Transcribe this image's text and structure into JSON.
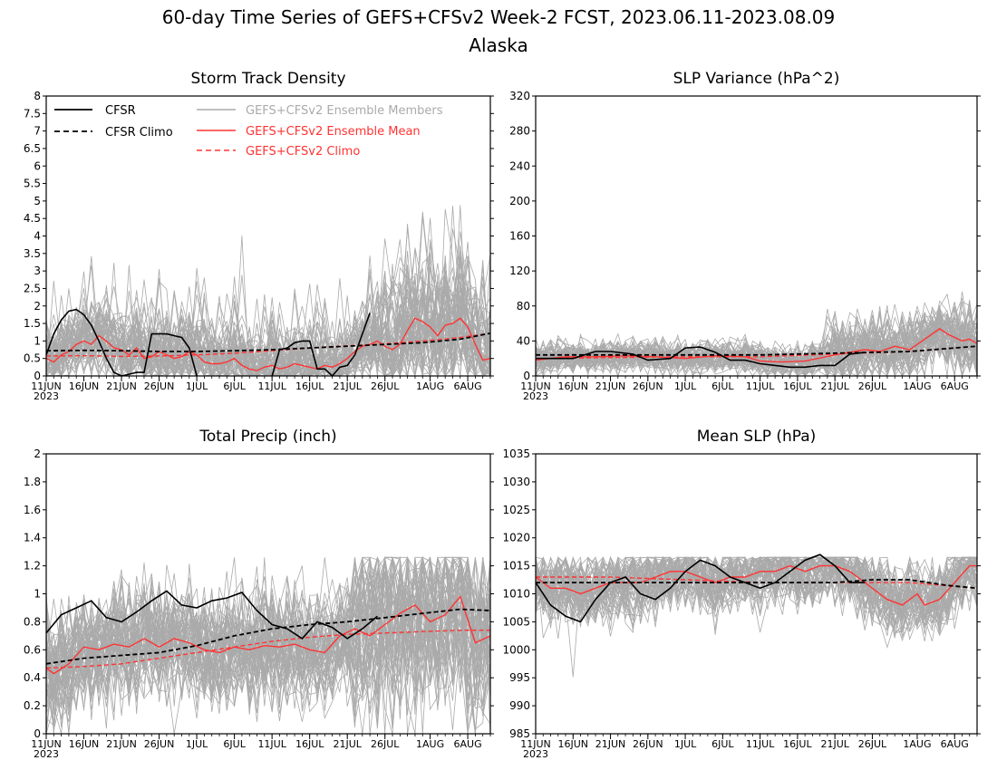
{
  "figure": {
    "title_line1": "60-day Time Series of GEFS+CFSv2 Week-2 FCST, 2023.06.11-2023.08.09",
    "title_line2": "Alaska"
  },
  "colors": {
    "cfsr": "#000000",
    "members": "#aaaaaa",
    "ens_mean": "#ff3333",
    "gefs_climo": "#ff3333"
  },
  "legend": {
    "cfsr": "CFSR",
    "cfsr_climo": "CFSR Climo",
    "members": "GEFS+CFSv2 Ensemble Members",
    "ens_mean": "GEFS+CFSv2 Ensemble Mean",
    "gefs_climo": "GEFS+CFSv2 Climo",
    "placement": "top (inside Storm Track Density panel)"
  },
  "x_axis": {
    "tick_labels": [
      "11JUN",
      "16JUN",
      "21JUN",
      "26JUN",
      "1JUL",
      "6JUL",
      "11JUL",
      "16JUL",
      "21JUL",
      "26JUL",
      "1AUG",
      "6AUG"
    ],
    "tick_days": [
      0,
      5,
      10,
      15,
      20,
      25,
      30,
      35,
      40,
      45,
      51,
      56
    ],
    "year_label": "2023",
    "day_range": [
      0,
      59
    ]
  },
  "chart_data": [
    {
      "type": "line",
      "title": "Storm Track Density",
      "ylim": [
        0,
        8
      ],
      "yticks": [
        "0",
        "0.5",
        "1",
        "1.5",
        "2",
        "2.5",
        "3",
        "3.5",
        "4",
        "4.5",
        "5",
        "5.5",
        "6",
        "6.5",
        "7",
        "7.5",
        "8"
      ],
      "series": [
        {
          "name": "CFSR",
          "x": [
            0,
            1,
            2,
            3,
            4,
            5,
            6,
            7,
            8,
            9,
            10,
            11,
            12,
            13,
            14,
            15,
            16,
            17,
            18,
            19,
            20,
            21,
            22,
            23,
            24,
            25,
            26,
            27,
            28,
            29,
            30,
            31,
            32,
            33,
            34,
            35,
            36,
            37,
            38,
            39,
            40,
            41,
            42,
            43,
            44
          ],
          "values": [
            0.6,
            1.2,
            1.6,
            1.85,
            1.9,
            1.75,
            1.45,
            1.0,
            0.5,
            0.1,
            0.0,
            0.05,
            0.1,
            0.1,
            1.2,
            1.2,
            1.2,
            1.15,
            1.1,
            0.8,
            0.0,
            null,
            null,
            null,
            null,
            null,
            null,
            null,
            null,
            null,
            0.0,
            0.75,
            0.8,
            0.95,
            1.0,
            1.0,
            0.2,
            0.2,
            0.0,
            0.25,
            0.3,
            0.6,
            1.2,
            1.8,
            null
          ]
        },
        {
          "name": "CFSR Climo",
          "x": [
            0,
            5,
            10,
            15,
            20,
            25,
            30,
            35,
            40,
            45,
            50,
            55,
            59
          ],
          "values": [
            0.72,
            0.73,
            0.72,
            0.7,
            0.7,
            0.72,
            0.75,
            0.8,
            0.85,
            0.9,
            0.95,
            1.05,
            1.22
          ]
        },
        {
          "name": "GEFS+CFSv2 Ensemble Mean",
          "x": [
            0,
            1,
            2,
            3,
            4,
            5,
            6,
            7,
            8,
            9,
            10,
            11,
            12,
            13,
            14,
            15,
            16,
            17,
            18,
            19,
            20,
            21,
            22,
            23,
            24,
            25,
            26,
            27,
            28,
            29,
            30,
            31,
            32,
            33,
            34,
            35,
            36,
            37,
            38,
            39,
            40,
            41,
            42,
            43,
            44,
            45,
            46,
            47,
            48,
            49,
            50,
            51,
            52,
            53,
            54,
            55,
            56,
            57,
            58,
            59
          ],
          "values": [
            0.5,
            0.4,
            0.6,
            0.7,
            0.9,
            1.0,
            0.9,
            1.15,
            1.0,
            0.8,
            0.75,
            0.6,
            0.8,
            0.5,
            0.55,
            0.7,
            0.6,
            0.5,
            0.55,
            0.7,
            0.6,
            0.4,
            0.35,
            0.35,
            0.4,
            0.5,
            0.3,
            0.2,
            0.15,
            0.25,
            0.3,
            0.2,
            0.25,
            0.35,
            0.3,
            0.25,
            0.2,
            0.3,
            0.25,
            0.35,
            0.5,
            0.7,
            0.85,
            0.9,
            1.0,
            0.85,
            0.75,
            0.9,
            1.3,
            1.65,
            1.55,
            1.4,
            1.15,
            1.45,
            1.5,
            1.65,
            1.4,
            0.9,
            0.45,
            0.5
          ]
        },
        {
          "name": "GEFS+CFSv2 Climo",
          "x": [
            0,
            5,
            10,
            15,
            20,
            25,
            30,
            35,
            40,
            45,
            50,
            55,
            59
          ],
          "values": [
            0.57,
            0.58,
            0.56,
            0.57,
            0.6,
            0.65,
            0.72,
            0.8,
            0.86,
            0.92,
            1.0,
            1.1,
            1.22
          ]
        }
      ]
    },
    {
      "type": "line",
      "title": "SLP Variance (hPa^2)",
      "ylim": [
        0,
        320
      ],
      "yticks": [
        "0",
        "40",
        "80",
        "120",
        "160",
        "200",
        "240",
        "280",
        "320"
      ],
      "series": [
        {
          "name": "CFSR",
          "x": [
            0,
            5,
            8,
            10,
            13,
            15,
            18,
            20,
            22,
            24,
            26,
            28,
            30,
            32,
            34,
            36,
            38,
            40,
            42,
            44
          ],
          "values": [
            20,
            20,
            28,
            28,
            25,
            18,
            20,
            32,
            33,
            27,
            18,
            18,
            14,
            12,
            10,
            10,
            12,
            12,
            25,
            27
          ]
        },
        {
          "name": "CFSR Climo",
          "x": [
            0,
            10,
            20,
            30,
            40,
            50,
            59
          ],
          "values": [
            24,
            24,
            24,
            24,
            26,
            28,
            34
          ]
        },
        {
          "name": "GEFS+CFSv2 Ensemble Mean",
          "x": [
            0,
            4,
            8,
            12,
            16,
            20,
            24,
            28,
            30,
            33,
            36,
            40,
            44,
            46,
            48,
            50,
            52,
            54,
            55,
            57,
            58,
            59
          ],
          "values": [
            18,
            22,
            22,
            23,
            22,
            20,
            23,
            22,
            17,
            16,
            17,
            24,
            30,
            28,
            34,
            30,
            42,
            54,
            48,
            40,
            42,
            37
          ]
        },
        {
          "name": "GEFS+CFSv2 Climo",
          "x": [
            0,
            10,
            20,
            30,
            40,
            50,
            59
          ],
          "values": [
            20,
            21,
            22,
            22,
            25,
            28,
            34
          ]
        }
      ]
    },
    {
      "type": "line",
      "title": "Total Precip (inch)",
      "ylim": [
        0,
        2
      ],
      "yticks": [
        "0",
        "0.2",
        "0.4",
        "0.6",
        "0.8",
        "1",
        "1.2",
        "1.4",
        "1.6",
        "1.8",
        "2"
      ],
      "series": [
        {
          "name": "CFSR",
          "x": [
            0,
            2,
            4,
            6,
            8,
            10,
            12,
            14,
            16,
            18,
            20,
            22,
            24,
            26,
            28,
            30,
            32,
            34,
            36,
            38,
            40,
            42,
            44
          ],
          "values": [
            0.72,
            0.85,
            0.9,
            0.95,
            0.83,
            0.8,
            0.87,
            0.95,
            1.02,
            0.92,
            0.9,
            0.95,
            0.97,
            1.01,
            0.88,
            0.78,
            0.75,
            0.68,
            0.8,
            0.76,
            0.68,
            0.75,
            0.84
          ]
        },
        {
          "name": "CFSR Climo",
          "x": [
            0,
            5,
            10,
            15,
            20,
            25,
            30,
            35,
            40,
            45,
            50,
            55,
            59
          ],
          "values": [
            0.5,
            0.54,
            0.56,
            0.58,
            0.63,
            0.7,
            0.75,
            0.78,
            0.8,
            0.83,
            0.86,
            0.89,
            0.88
          ]
        },
        {
          "name": "GEFS+CFSv2 Ensemble Mean",
          "x": [
            0,
            1,
            3,
            5,
            7,
            9,
            11,
            13,
            15,
            17,
            19,
            21,
            23,
            25,
            27,
            29,
            31,
            33,
            35,
            37,
            39,
            41,
            43,
            45,
            47,
            49,
            51,
            53,
            55,
            57,
            59
          ],
          "values": [
            0.47,
            0.43,
            0.5,
            0.62,
            0.6,
            0.64,
            0.62,
            0.68,
            0.62,
            0.68,
            0.65,
            0.6,
            0.58,
            0.62,
            0.6,
            0.63,
            0.62,
            0.64,
            0.6,
            0.58,
            0.7,
            0.75,
            0.7,
            0.78,
            0.86,
            0.92,
            0.8,
            0.85,
            0.98,
            0.65,
            0.7
          ]
        },
        {
          "name": "GEFS+CFSv2 Climo",
          "x": [
            0,
            5,
            10,
            15,
            20,
            25,
            30,
            35,
            40,
            45,
            50,
            55,
            59
          ],
          "values": [
            0.47,
            0.48,
            0.5,
            0.54,
            0.58,
            0.62,
            0.66,
            0.69,
            0.71,
            0.72,
            0.73,
            0.74,
            0.74
          ]
        }
      ]
    },
    {
      "type": "line",
      "title": "Mean SLP (hPa)",
      "ylim": [
        985,
        1035
      ],
      "yticks": [
        "985",
        "990",
        "995",
        "1000",
        "1005",
        "1010",
        "1015",
        "1020",
        "1025",
        "1030",
        "1035"
      ],
      "series": [
        {
          "name": "CFSR",
          "x": [
            0,
            2,
            4,
            6,
            8,
            10,
            12,
            14,
            16,
            18,
            20,
            22,
            24,
            26,
            28,
            30,
            32,
            34,
            36,
            38,
            40,
            42,
            44
          ],
          "values": [
            1012,
            1008,
            1006,
            1005,
            1009,
            1012,
            1013,
            1010,
            1009,
            1011,
            1014,
            1016,
            1015,
            1013,
            1012,
            1011,
            1012,
            1014,
            1016,
            1017,
            1015,
            1012,
            1012
          ]
        },
        {
          "name": "CFSR Climo",
          "x": [
            0,
            10,
            20,
            30,
            40,
            45,
            50,
            55,
            59
          ],
          "values": [
            1012,
            1012,
            1012,
            1012,
            1012,
            1012.5,
            1012.5,
            1011.5,
            1011
          ]
        },
        {
          "name": "GEFS+CFSv2 Ensemble Mean",
          "x": [
            0,
            2,
            4,
            6,
            8,
            10,
            12,
            14,
            16,
            18,
            20,
            22,
            24,
            26,
            28,
            30,
            32,
            34,
            36,
            38,
            40,
            42,
            44,
            45,
            47,
            49,
            51,
            52,
            54,
            56,
            58,
            59
          ],
          "values": [
            1013,
            1011,
            1011,
            1010,
            1011,
            1012,
            1012,
            1012,
            1013,
            1014,
            1014,
            1013,
            1012,
            1013,
            1013,
            1014,
            1014,
            1015,
            1014,
            1015,
            1015,
            1014,
            1012,
            1011,
            1009,
            1008,
            1010,
            1008,
            1009,
            1012,
            1015,
            1015
          ]
        },
        {
          "name": "GEFS+CFSv2 Climo",
          "x": [
            0,
            10,
            20,
            30,
            40,
            50,
            59
          ],
          "values": [
            1013,
            1013,
            1012.5,
            1012,
            1012,
            1012,
            1011
          ]
        }
      ]
    }
  ]
}
